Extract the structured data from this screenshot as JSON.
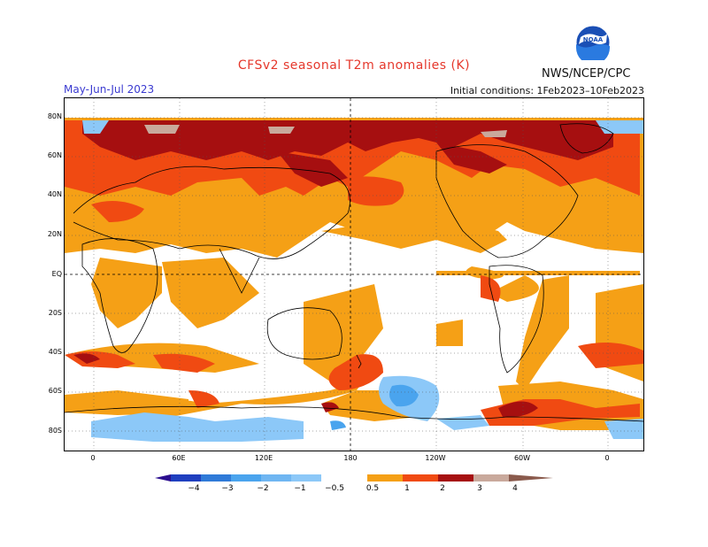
{
  "title": "CFSv2  seasonal  T2m  anomalies  (K)",
  "period": "May-Jun-Jul 2023",
  "initial_conditions": "Initial conditions:  1Feb2023–10Feb2023",
  "agency": "NWS/NCEP/CPC",
  "logo_text": "NOAA",
  "lat_labels": [
    "80N",
    "60N",
    "40N",
    "20N",
    "EQ",
    "20S",
    "40S",
    "60S",
    "80S"
  ],
  "lon_labels": [
    "0",
    "60E",
    "120E",
    "180",
    "120W",
    "60W",
    "0"
  ],
  "colorbar": {
    "labels": [
      "−4",
      "−3",
      "−2",
      "−1",
      "−0.5",
      "0.5",
      "1",
      "2",
      "3",
      "4"
    ],
    "colors": [
      "#2b0e8f",
      "#1f3fbf",
      "#2f7ad8",
      "#4aa4ee",
      "#8cc8f8",
      "#ffffff",
      "#f5a016",
      "#f04a12",
      "#d42815",
      "#9c0e0e",
      "#c49a8e",
      "#8a5a4c"
    ]
  },
  "legend_colors": {
    "anom_0_5_1": "#f5a016",
    "anom_1_2": "#f04a12",
    "anom_2_3": "#a60f10",
    "anom_3_4": "#c9a99c",
    "anom_neg_0_5_1": "#8cc8f8",
    "anom_neg_1_2": "#4aa4ee"
  }
}
